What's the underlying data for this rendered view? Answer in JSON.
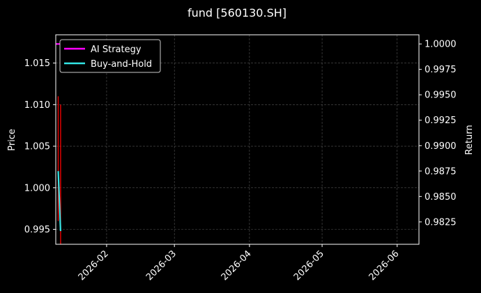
{
  "chart_data": {
    "type": "line",
    "title": "fund [560130.SH]",
    "ylabel_left": "Price",
    "ylabel_right": "Return",
    "x_range": [
      "2026-01-11",
      "2026-06-10"
    ],
    "x_ticks": [
      "2026-02",
      "2026-03",
      "2026-04",
      "2026-05",
      "2026-06"
    ],
    "y_left_range": [
      0.9932,
      1.0184
    ],
    "y_left_ticks": [
      "0.995",
      "1.000",
      "1.005",
      "1.010",
      "1.015"
    ],
    "y_right_range": [
      0.9803,
      1.0009
    ],
    "y_right_ticks": [
      "0.9825",
      "0.9850",
      "0.9875",
      "0.9900",
      "0.9925",
      "0.9950",
      "0.9975",
      "1.0000"
    ],
    "grid": true,
    "legend_position": "top-left",
    "candles": [
      {
        "date": "2026-01-12",
        "high": 1.011,
        "low": 0.996,
        "color": "#ff0000"
      },
      {
        "date": "2026-01-13",
        "high": 1.01,
        "low": 0.993,
        "color": "#ff0000"
      }
    ],
    "series": [
      {
        "name": "AI Strategy",
        "axis": "right",
        "color": "#ff00ff",
        "x": [
          "2026-01-11",
          "2026-01-12",
          "2026-01-13"
        ],
        "values": [
          1.0,
          1.0,
          1.0
        ]
      },
      {
        "name": "Buy-and-Hold",
        "axis": "right",
        "color": "#33e6e6",
        "x": [
          "2026-01-12",
          "2026-01-13"
        ],
        "values": [
          0.9875,
          0.9816
        ]
      }
    ]
  },
  "colors": {
    "background": "#000000",
    "foreground": "#ffffff",
    "grid": "#555555",
    "legend_bg": "#000000",
    "legend_border": "#cccccc"
  }
}
